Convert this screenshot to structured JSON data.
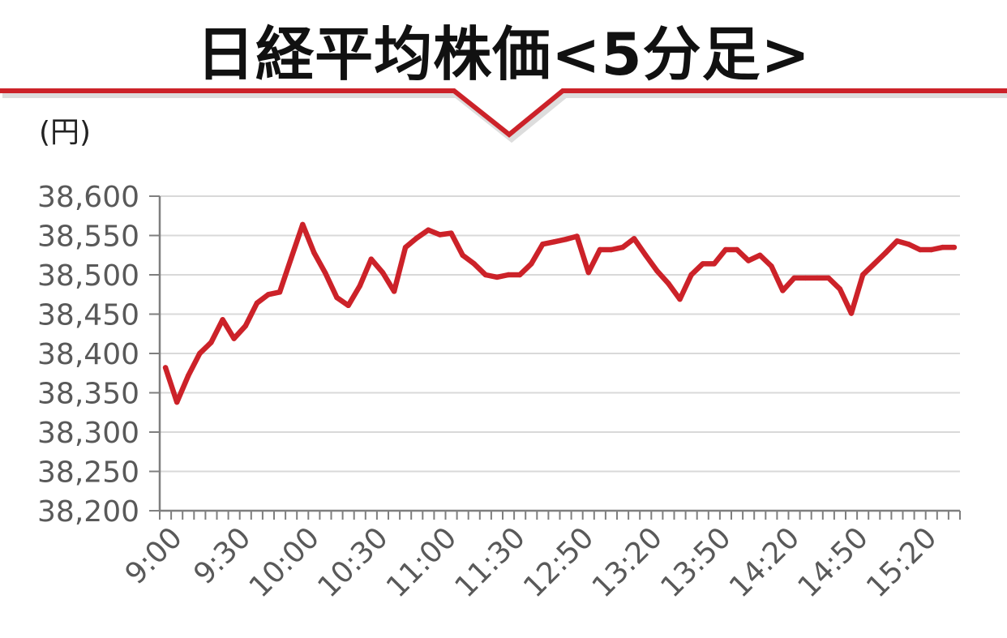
{
  "title": "日経平均株価<5分足>",
  "y_unit": "(円)",
  "colors": {
    "line": "#cc2229",
    "banner": "#cc2229",
    "grid": "#d9d9d9",
    "axis": "#7f7f7f"
  },
  "chart_data": {
    "type": "line",
    "title": "日経平均株価<5分足>",
    "ylabel": "(円)",
    "ylim": [
      38200,
      38600
    ],
    "yticks": [
      38200,
      38250,
      38300,
      38350,
      38400,
      38450,
      38500,
      38550,
      38600
    ],
    "ytick_labels": [
      "38,200",
      "38,250",
      "38,300",
      "38,350",
      "38,400",
      "38,450",
      "38,500",
      "38,550",
      "38,600"
    ],
    "xtick_labels": [
      "9:00",
      "9:30",
      "10:00",
      "10:30",
      "11:00",
      "11:30",
      "12:50",
      "13:20",
      "13:50",
      "14:20",
      "14:50",
      "15:20"
    ],
    "grid": true,
    "series": [
      {
        "values": [
          38382,
          38338,
          38372,
          38400,
          38414,
          38443,
          38419,
          38435,
          38464,
          38475,
          38478,
          38521,
          38564,
          38528,
          38502,
          38471,
          38461,
          38486,
          38520,
          38503,
          38479,
          38535,
          38547,
          38557,
          38551,
          38553,
          38525,
          38514,
          38500,
          38497,
          38500,
          38500,
          38514,
          38539,
          38542,
          38545,
          38549,
          38503,
          38532,
          38532,
          38535,
          38546,
          38525,
          38505,
          38489,
          38469,
          38500,
          38514,
          38514,
          38532,
          38532,
          38518,
          38525,
          38511,
          38480,
          38496,
          38496,
          38496,
          38496,
          38482,
          38451,
          38500,
          38514,
          38528,
          38543,
          38539,
          38532,
          38532,
          38535,
          38535
        ]
      }
    ]
  }
}
